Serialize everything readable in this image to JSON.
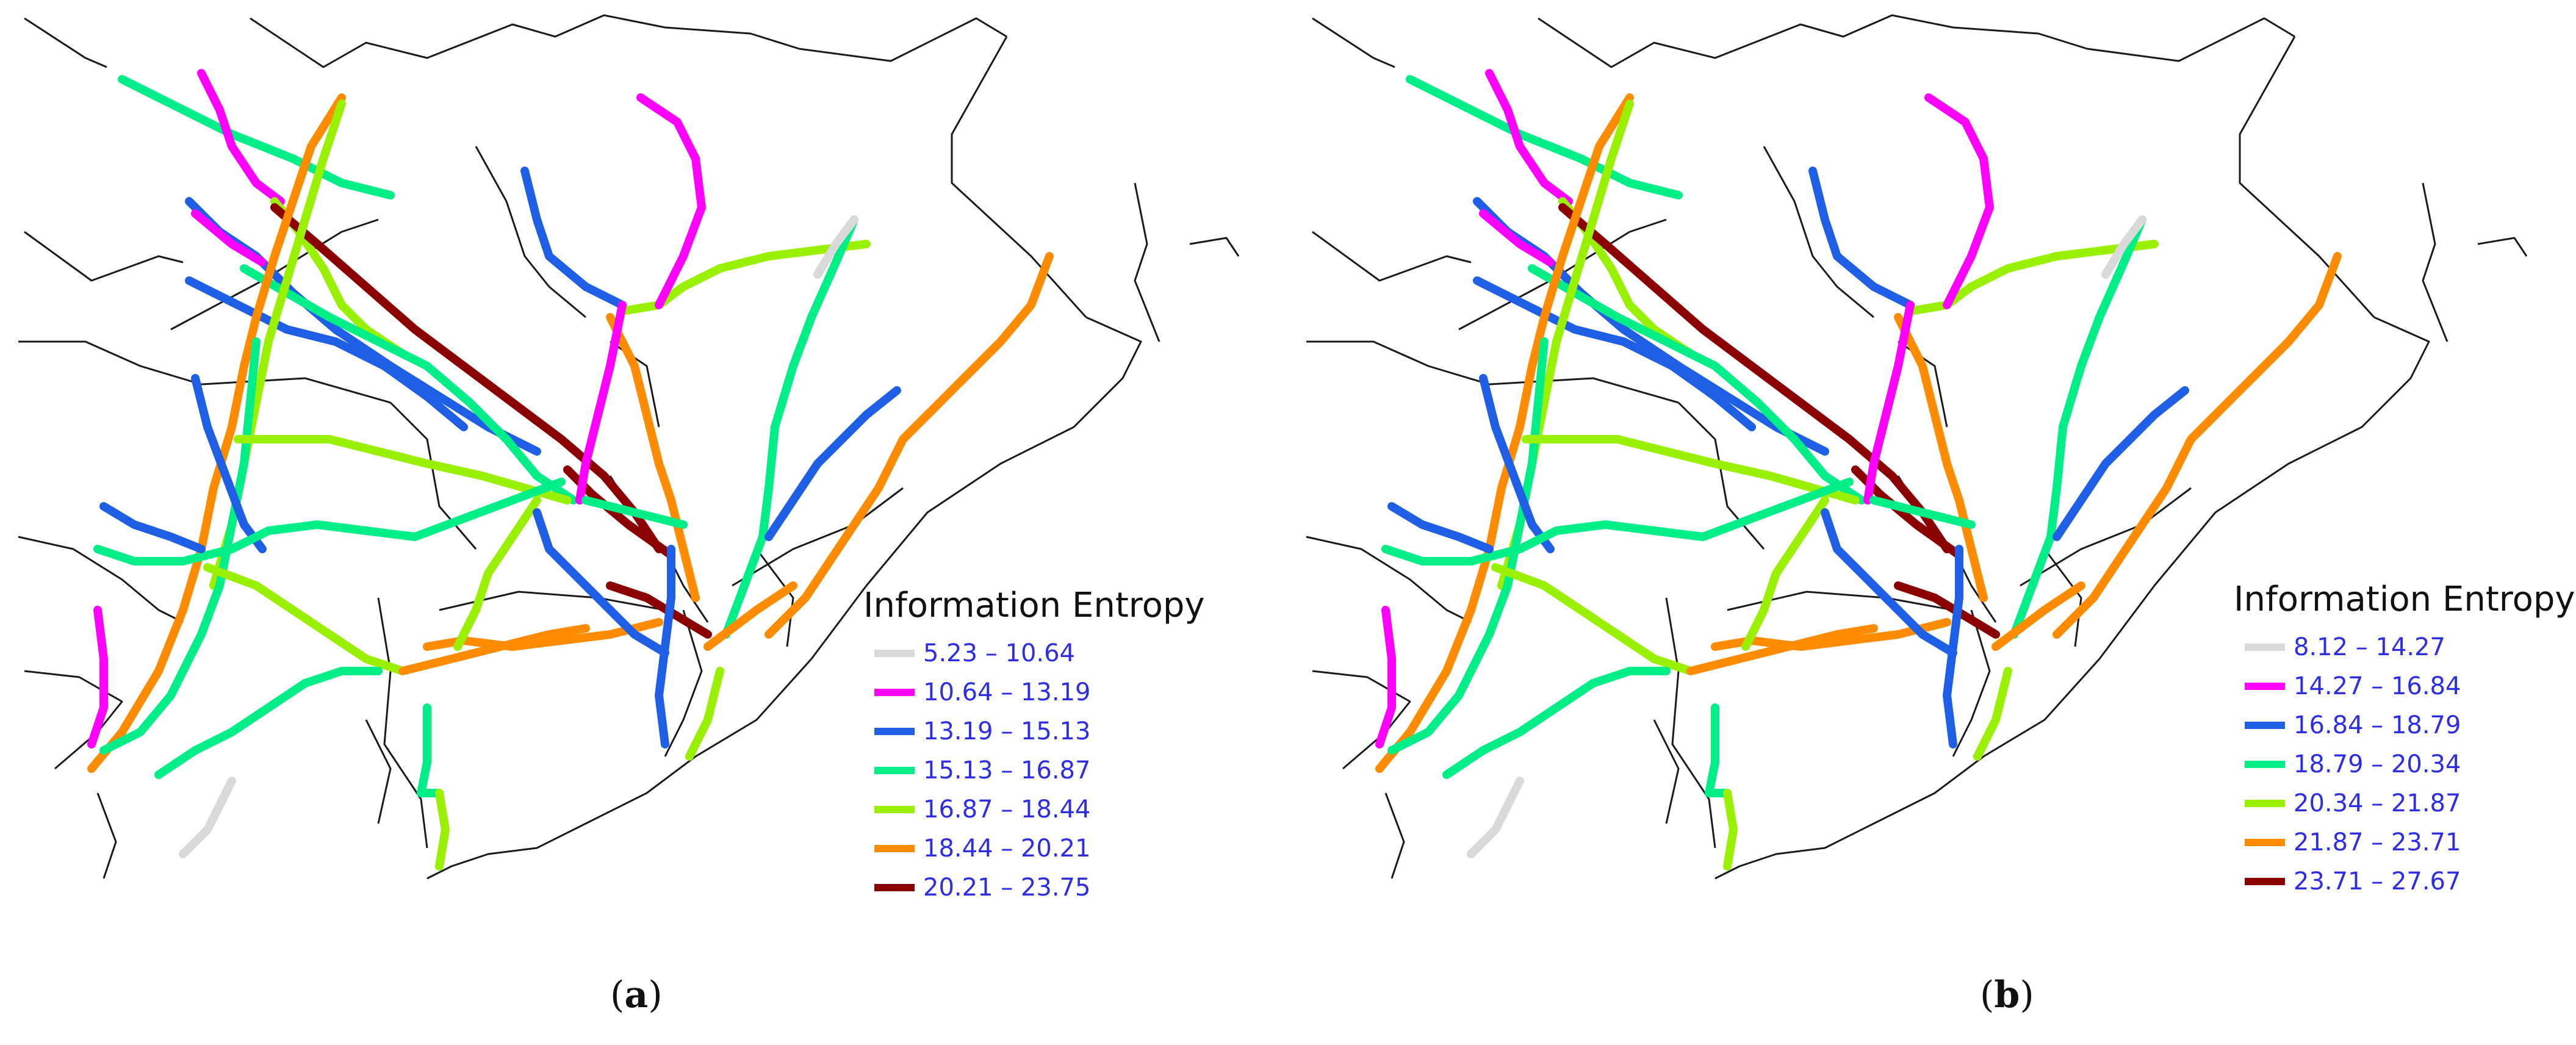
{
  "legend_colors": [
    "#d9d9d9",
    "#ff00ff",
    "#1f5fe6",
    "#00ee88",
    "#99f000",
    "#ff8c00",
    "#8b0000"
  ],
  "map_colors": {
    "border": "#1a1a1a",
    "background": "#ffffff",
    "legend_text": "#2d2de6"
  },
  "panels": [
    {
      "label": "a",
      "legend": {
        "title": "Information Entropy",
        "classes": [
          {
            "label": "5.23 – 10.64"
          },
          {
            "label": "10.64 – 13.19"
          },
          {
            "label": "13.19 – 15.13"
          },
          {
            "label": "15.13 – 16.87"
          },
          {
            "label": "16.87 – 18.44"
          },
          {
            "label": "18.44 – 20.21"
          },
          {
            "label": "20.21 – 23.75"
          }
        ]
      },
      "route_classes": [
        3,
        1,
        2,
        4,
        6,
        3,
        2,
        5,
        4,
        1,
        3,
        4,
        6,
        2,
        3,
        4,
        5,
        0,
        1,
        2,
        3,
        5,
        4,
        2,
        3,
        4,
        6,
        5,
        4,
        1,
        2,
        3,
        5,
        0,
        2,
        4,
        1,
        3,
        2,
        5
      ]
    },
    {
      "label": "b",
      "legend": {
        "title": "Information Entropy",
        "classes": [
          {
            "label": "8.12  – 14.27"
          },
          {
            "label": "14.27 – 16.84"
          },
          {
            "label": "16.84 – 18.79"
          },
          {
            "label": "18.79 – 20.34"
          },
          {
            "label": "20.34 – 21.87"
          },
          {
            "label": "21.87 – 23.71"
          },
          {
            "label": "23.71 – 27.67"
          }
        ]
      },
      "route_classes": [
        3,
        1,
        2,
        4,
        6,
        3,
        2,
        5,
        4,
        1,
        3,
        4,
        6,
        2,
        3,
        4,
        5,
        0,
        1,
        2,
        3,
        5,
        4,
        2,
        3,
        4,
        6,
        5,
        4,
        1,
        2,
        3,
        5,
        0,
        2,
        4,
        1,
        3,
        2,
        5
      ]
    }
  ]
}
